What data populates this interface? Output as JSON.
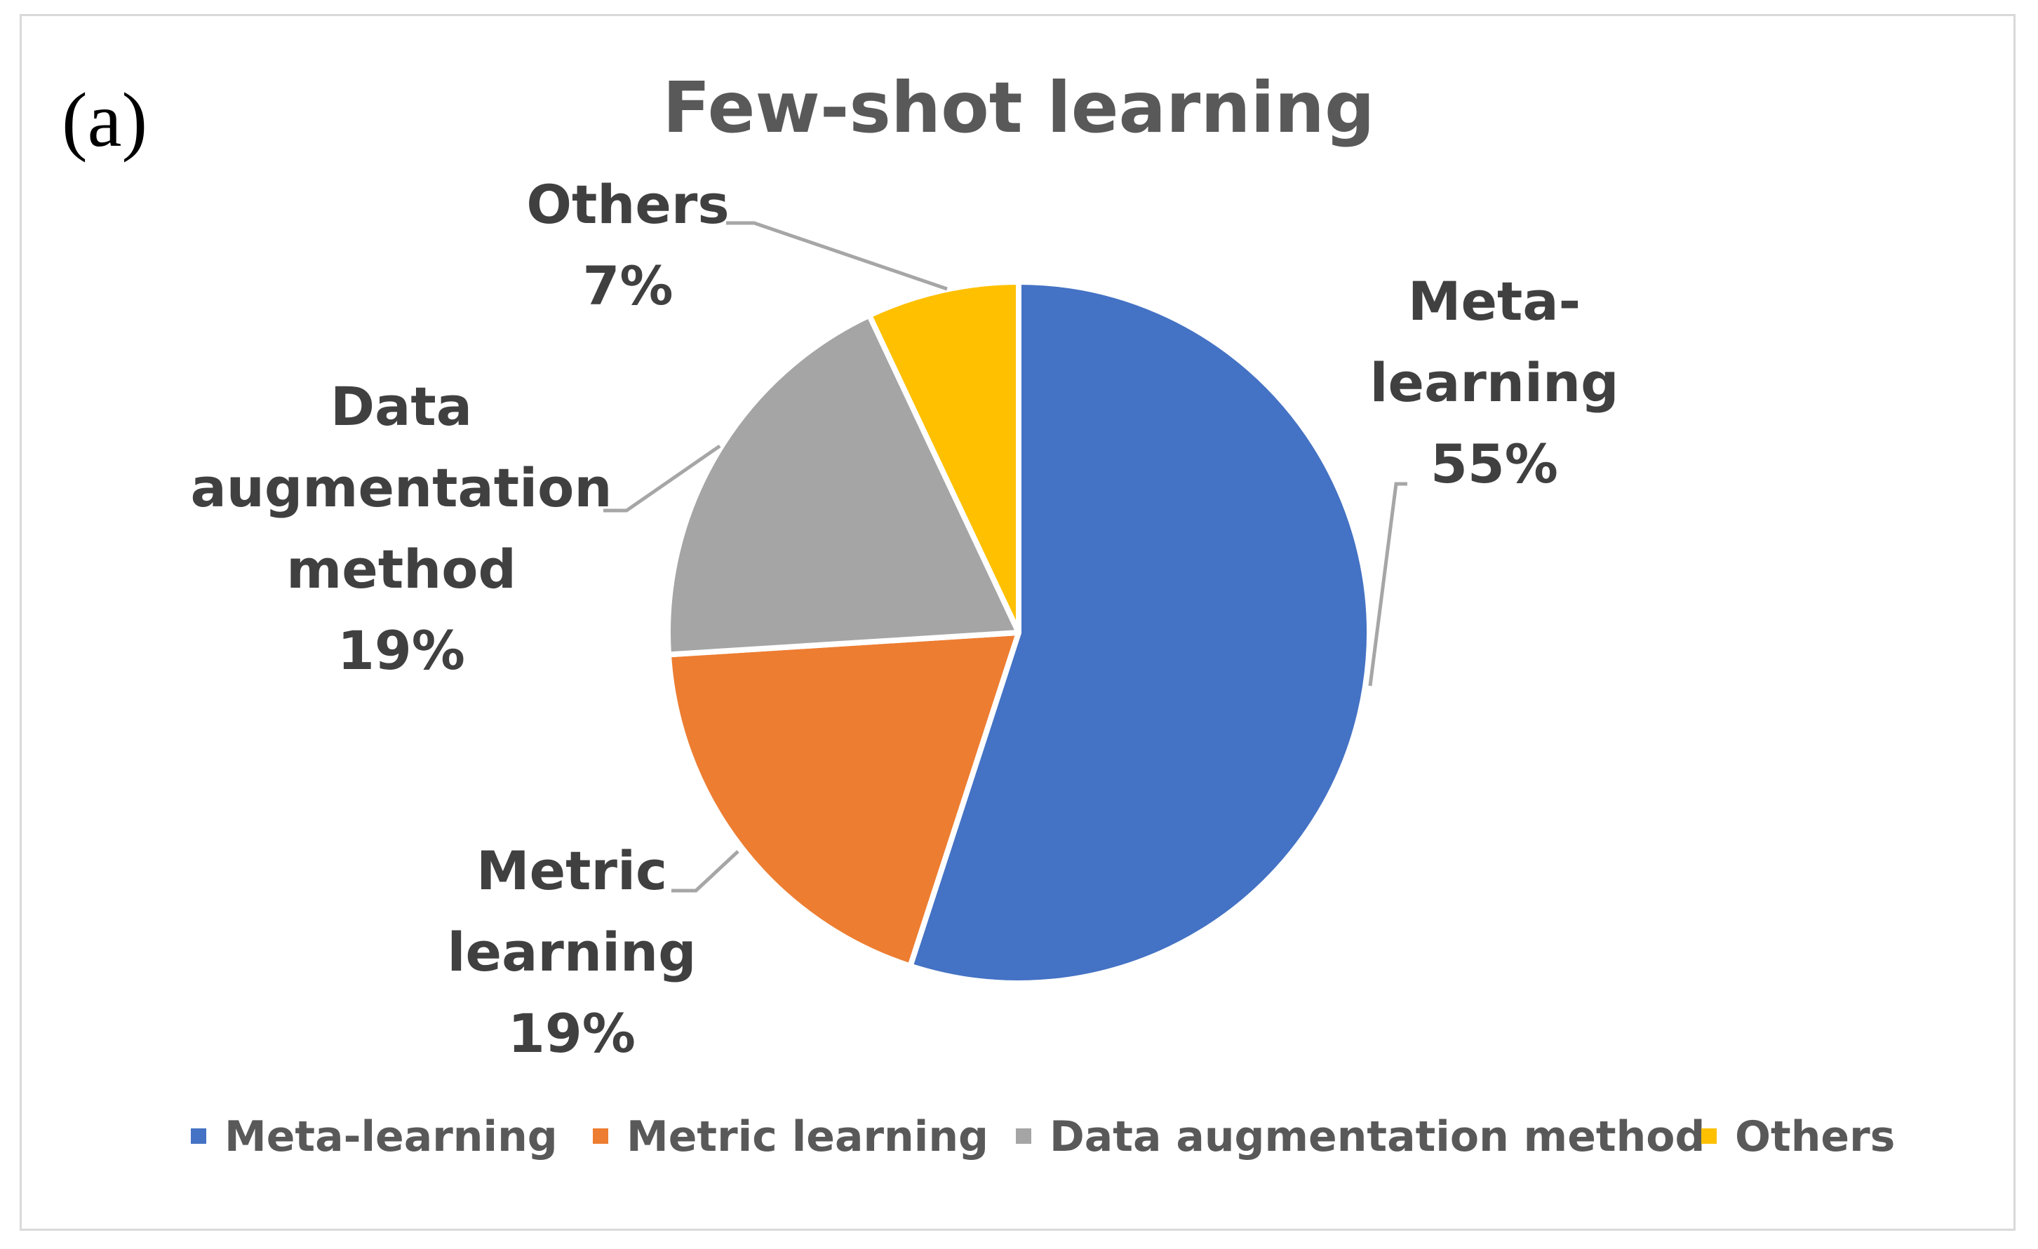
{
  "panel_label": "(a)",
  "chart_data": {
    "type": "pie",
    "title": "Few-shot learning",
    "categories": [
      "Meta-learning",
      "Metric learning",
      "Data augmentation method",
      "Others"
    ],
    "values": [
      55,
      19,
      19,
      7
    ],
    "value_labels": [
      "55%",
      "19%",
      "19%",
      "7%"
    ],
    "slice_label_lines": [
      [
        "Meta-",
        "learning"
      ],
      [
        "Metric",
        "learning"
      ],
      [
        "Data",
        "augmentation",
        "method"
      ],
      [
        "Others"
      ]
    ],
    "colors": [
      "#4472C4",
      "#ED7D31",
      "#A5A5A5",
      "#FFC000"
    ],
    "legend_position": "bottom",
    "start_angle": "12 o'clock",
    "direction": "clockwise"
  }
}
